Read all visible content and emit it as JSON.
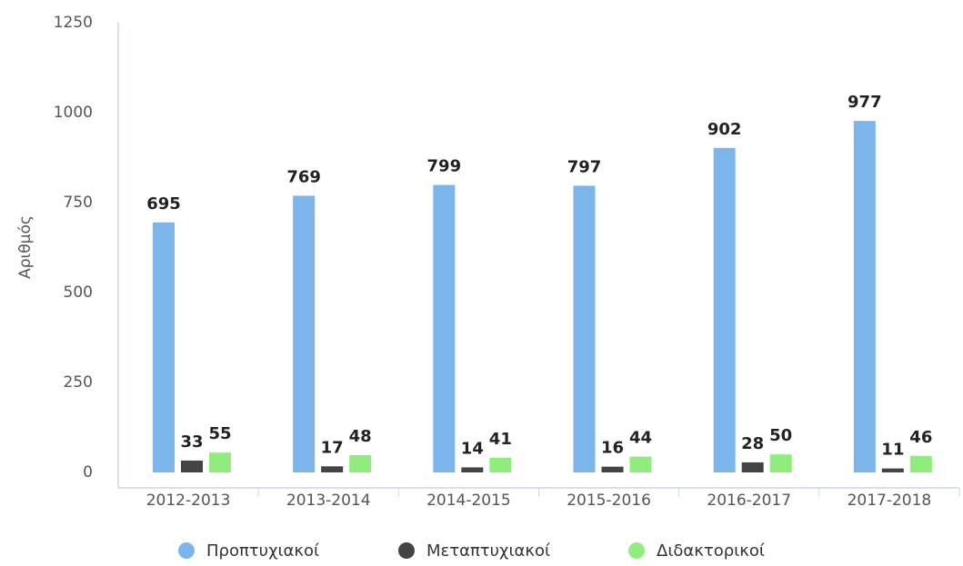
{
  "chart_data": {
    "type": "bar",
    "y_label": "Αριθμός",
    "categories": [
      "2012-2013",
      "2013-2014",
      "2014-2015",
      "2015-2016",
      "2016-2017",
      "2017-2018"
    ],
    "series": [
      {
        "name": "Προπτυχιακοί",
        "color": "#7cb5ec",
        "values": [
          695,
          769,
          799,
          797,
          902,
          977
        ]
      },
      {
        "name": "Μεταπτυχιακοί",
        "color": "#434348",
        "values": [
          33,
          17,
          14,
          16,
          28,
          11
        ]
      },
      {
        "name": "Διδακτορικοί",
        "color": "#90ed7d",
        "values": [
          55,
          48,
          41,
          44,
          50,
          46
        ]
      }
    ],
    "ylim": [
      0,
      1250
    ],
    "yticks": [
      0,
      250,
      500,
      750,
      1000,
      1250
    ],
    "grid": false,
    "legend": "bottom"
  }
}
